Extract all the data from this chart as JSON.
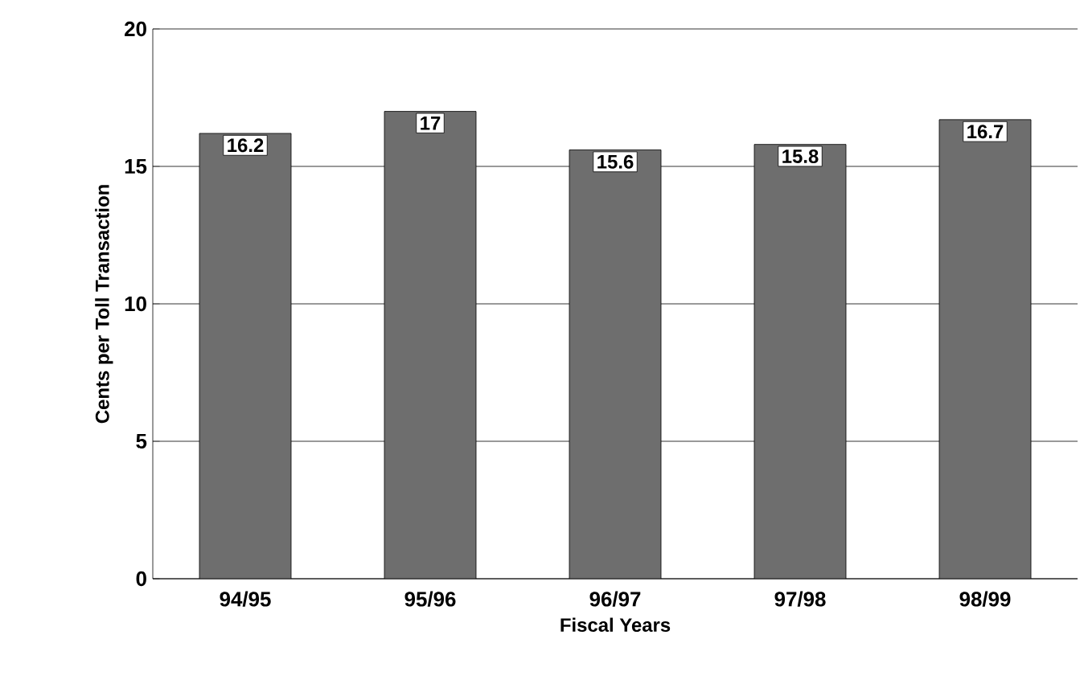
{
  "chart_data": {
    "type": "bar",
    "xlabel": "Fiscal Years",
    "ylabel": "Cents per Toll Transaction",
    "categories": [
      "94/95",
      "95/96",
      "96/97",
      "97/98",
      "98/99"
    ],
    "values": [
      16.2,
      17,
      15.6,
      15.8,
      16.7
    ],
    "color": "#6e6e6e",
    "ylim": [
      0,
      20
    ],
    "yticks": [
      0,
      5,
      10,
      15,
      20
    ],
    "grid": "y",
    "data_labels": true
  }
}
